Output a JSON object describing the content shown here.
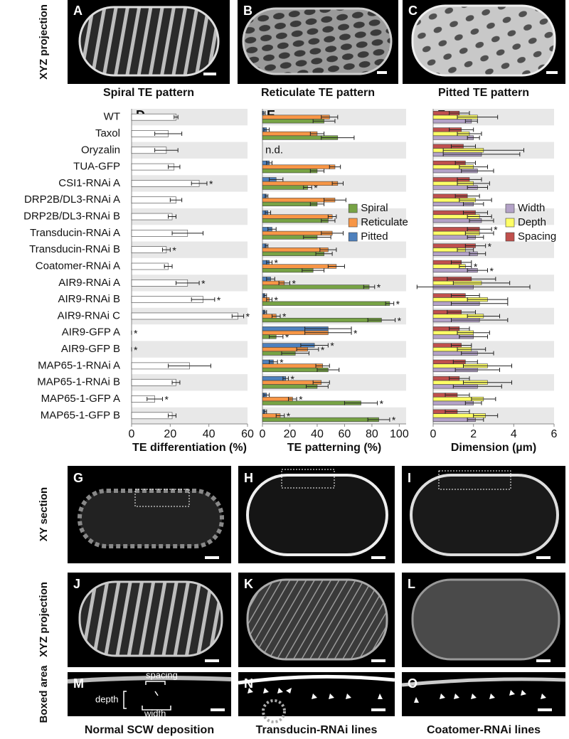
{
  "top_row": {
    "row_label": "XYZ projection",
    "panels": [
      {
        "letter": "A",
        "caption": "Spiral TE pattern"
      },
      {
        "letter": "B",
        "caption": "Reticulate TE pattern"
      },
      {
        "letter": "C",
        "caption": "Pitted TE pattern"
      }
    ]
  },
  "chart_data": [
    {
      "type": "bar",
      "orientation": "horizontal",
      "panel": "D",
      "x_label": "TE differentiation (%)",
      "categories": [
        "WT",
        "Taxol",
        "Oryzalin",
        "TUA-GFP",
        "CSI1-RNAi A",
        "DRP2B/DL3-RNAi A",
        "DRP2B/DL3-RNAi B",
        "Transducin-RNAi A",
        "Transducin-RNAi B",
        "Coatomer-RNAi A",
        "AIR9-RNAi A",
        "AIR9-RNAi B",
        "AIR9-RNAi C",
        "AIR9-GFP A",
        "AIR9-GFP B",
        "MAP65-1-RNAi A",
        "MAP65-1-RNAi B",
        "MAP65-1-GFP A",
        "MAP65-1-GFP B"
      ],
      "xlim": [
        0,
        60
      ],
      "xticks": [
        0,
        20,
        40,
        60
      ],
      "series": [
        {
          "color": "#ffffff",
          "values": [
            23,
            19,
            18,
            22,
            35,
            23,
            21,
            29,
            18,
            19,
            29,
            37,
            55,
            0,
            0,
            30,
            23,
            12,
            21
          ],
          "errors": [
            1,
            7,
            6,
            3,
            4,
            3,
            2,
            8,
            2,
            2,
            6,
            6,
            3,
            0,
            0,
            11,
            2,
            4,
            2
          ],
          "stars": [
            null,
            null,
            null,
            null,
            "*",
            null,
            null,
            null,
            "*",
            null,
            "*",
            "*",
            "*",
            "*",
            "*",
            null,
            null,
            "*",
            null
          ]
        }
      ]
    },
    {
      "type": "bar",
      "orientation": "horizontal",
      "panel": "E",
      "x_label": "TE patterning (%)",
      "xlim": [
        0,
        105
      ],
      "xticks": [
        0,
        20,
        40,
        60,
        80,
        100
      ],
      "category_notes": [
        null,
        null,
        "n.d.",
        null,
        null,
        null,
        null,
        null,
        null,
        null,
        null,
        null,
        null,
        null,
        null,
        null,
        null,
        null,
        null
      ],
      "series": [
        {
          "name": "Spiral",
          "color": "#77a345",
          "values": [
            45,
            55,
            null,
            40,
            33,
            40,
            48,
            40,
            45,
            37,
            78,
            93,
            87,
            10,
            24,
            48,
            40,
            72,
            85
          ],
          "errors": [
            8,
            12,
            null,
            5,
            3,
            5,
            5,
            10,
            6,
            8,
            4,
            3,
            10,
            5,
            10,
            8,
            8,
            12,
            8
          ],
          "stars": [
            null,
            null,
            null,
            null,
            "*",
            null,
            null,
            null,
            null,
            null,
            "*",
            "*",
            "*",
            "*",
            null,
            null,
            null,
            "*",
            "*"
          ]
        },
        {
          "name": "Reticulate",
          "color": "#f79646",
          "values": [
            49,
            40,
            null,
            53,
            55,
            53,
            51,
            51,
            48,
            54,
            16,
            5,
            10,
            48,
            33,
            44,
            43,
            22,
            13
          ],
          "errors": [
            6,
            5,
            null,
            4,
            4,
            8,
            3,
            8,
            6,
            6,
            4,
            2,
            3,
            17,
            8,
            5,
            6,
            3,
            3
          ],
          "stars": [
            null,
            null,
            null,
            null,
            null,
            null,
            null,
            null,
            null,
            null,
            "*",
            "*",
            "*",
            "*",
            "*",
            null,
            null,
            "*",
            "*"
          ]
        },
        {
          "name": "Pitted",
          "color": "#4f81bd",
          "values": [
            1,
            3,
            null,
            5,
            10,
            3,
            4,
            7,
            3,
            5,
            6,
            2,
            2,
            48,
            38,
            8,
            17,
            3,
            2
          ],
          "errors": [
            1,
            2,
            null,
            2,
            5,
            1,
            2,
            3,
            1,
            2,
            3,
            1,
            1,
            17,
            10,
            3,
            2,
            2,
            1
          ],
          "stars": [
            null,
            null,
            null,
            null,
            null,
            null,
            null,
            null,
            null,
            "*",
            null,
            null,
            null,
            null,
            "*",
            "*",
            "*",
            null,
            null
          ]
        }
      ]
    },
    {
      "type": "bar",
      "orientation": "horizontal",
      "panel": "F",
      "x_label": "Dimension (µm)",
      "xlim": [
        0,
        6
      ],
      "xticks": [
        0,
        2,
        4,
        6
      ],
      "series": [
        {
          "name": "Width",
          "color": "#b3a2c7",
          "values": [
            1.9,
            2.0,
            2.4,
            2.2,
            2.2,
            2.0,
            2.4,
            2.1,
            2.2,
            2.2,
            2.0,
            2.3,
            2.3,
            2.0,
            2.2,
            2.2,
            2.2,
            2.0,
            2.1
          ],
          "errors": [
            0.3,
            0.3,
            1.9,
            0.8,
            0.5,
            0.5,
            0.6,
            0.4,
            0.4,
            0.5,
            2.8,
            1.4,
            1.4,
            0.7,
            0.8,
            1.1,
            1.2,
            0.4,
            0.4
          ],
          "stars": [
            null,
            null,
            null,
            null,
            null,
            null,
            null,
            null,
            null,
            "*",
            null,
            null,
            null,
            null,
            null,
            null,
            null,
            null,
            null
          ]
        },
        {
          "name": "Depth",
          "color": "#ffff66",
          "values": [
            2.2,
            1.8,
            2.5,
            2.0,
            2.0,
            2.1,
            2.3,
            2.3,
            1.6,
            1.6,
            2.4,
            2.7,
            2.5,
            2.0,
            1.9,
            2.7,
            2.7,
            2.5,
            2.6
          ],
          "errors": [
            1.0,
            0.6,
            2.0,
            0.7,
            0.8,
            0.8,
            0.6,
            0.7,
            0.4,
            0.3,
            1.4,
            1.0,
            0.8,
            0.8,
            0.7,
            1.2,
            1.2,
            0.6,
            0.6
          ],
          "stars": [
            null,
            null,
            null,
            null,
            null,
            null,
            null,
            null,
            null,
            "*",
            null,
            null,
            null,
            null,
            null,
            null,
            null,
            null,
            null
          ]
        },
        {
          "name": "Spacing",
          "color": "#c0504d",
          "values": [
            1.3,
            1.4,
            1.5,
            1.6,
            1.8,
            1.7,
            2.1,
            2.3,
            2.1,
            1.4,
            1.9,
            1.6,
            1.4,
            1.3,
            1.4,
            1.6,
            1.3,
            1.2,
            1.2
          ],
          "errors": [
            0.5,
            0.6,
            0.6,
            0.5,
            0.6,
            0.6,
            0.6,
            0.6,
            0.5,
            0.5,
            1.2,
            0.7,
            0.7,
            0.5,
            0.5,
            0.6,
            0.5,
            0.6,
            0.6
          ],
          "stars": [
            null,
            null,
            null,
            null,
            null,
            null,
            null,
            "*",
            "*",
            null,
            null,
            null,
            null,
            null,
            null,
            null,
            null,
            null,
            null
          ]
        }
      ]
    }
  ],
  "bottom_grid": {
    "row_labels": [
      "XY section",
      "XYZ projection",
      "Boxed area"
    ],
    "letters": [
      "G",
      "H",
      "I",
      "J",
      "K",
      "L",
      "M",
      "N",
      "O"
    ],
    "annotations": [
      "spacing",
      "depth",
      "width"
    ],
    "captions": [
      "Normal SCW deposition",
      "Transducin-RNAi lines",
      "Coatomer-RNAi lines"
    ]
  }
}
